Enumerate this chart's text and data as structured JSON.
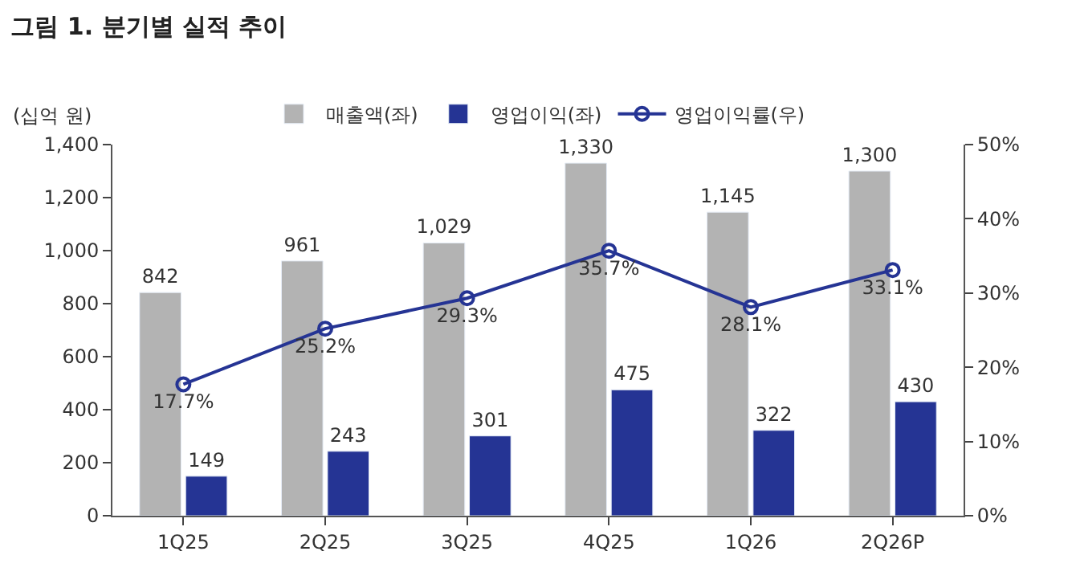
{
  "chart_data": {
    "type": "bar",
    "title": "그림 1. 분기별 실적 추이",
    "ylabel": "(십억 원)",
    "categories": [
      "1Q25",
      "2Q25",
      "3Q25",
      "4Q25",
      "1Q26",
      "2Q26P"
    ],
    "series": [
      {
        "name": "매출액(좌)",
        "color": "#b3b3b3",
        "values": [
          842,
          961,
          1029,
          1330,
          1145,
          1300
        ],
        "value_labels": [
          "842",
          "961",
          "1,029",
          "1,330",
          "1,145",
          "1,300"
        ]
      },
      {
        "name": "영업이익(좌)",
        "color": "#253494",
        "values": [
          149,
          243,
          301,
          475,
          322,
          430
        ],
        "data_labels": true
      },
      {
        "name": "영업이익률(우)",
        "type": "line",
        "axis": "y2",
        "color": "#253494",
        "marker": "circle",
        "values": [
          17.7,
          25.2,
          29.3,
          35.7,
          28.1,
          33.1
        ],
        "value_labels": [
          "17.7%",
          "25.2%",
          "29.3%",
          "35.7%",
          "28.1%",
          "33.1%"
        ]
      }
    ],
    "ylim": [
      0,
      1400
    ],
    "yticks": [
      0,
      200,
      400,
      600,
      800,
      {
        "value": 1000,
        "label": "1,000"
      },
      {
        "value": 1200,
        "label": "1,200"
      },
      {
        "value": 1400,
        "label": "1,400"
      }
    ],
    "y2lim": [
      0,
      50
    ],
    "y2ticks": [
      {
        "value": 0,
        "label": "0%"
      },
      {
        "value": 10,
        "label": "10%"
      },
      {
        "value": 20,
        "label": "20%"
      },
      {
        "value": 30,
        "label": "30%"
      },
      {
        "value": 40,
        "label": "40%"
      },
      {
        "value": 50,
        "label": "50%"
      }
    ],
    "legend": "top"
  }
}
